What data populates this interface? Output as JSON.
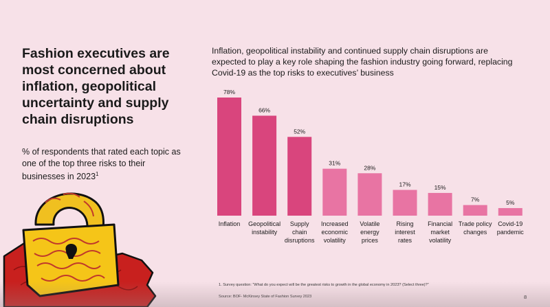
{
  "headline": "Fashion executives are most concerned about inflation, geopolitical uncertainty and supply chain disruptions",
  "subtitle": {
    "text": "% of respondents that rated each topic as one of the top three risks to their businesses in 2023",
    "footnote_marker": "1"
  },
  "chart_title": "Inflation, geopolitical instability and continued supply chain disruptions are expected to play a key role shaping the fashion industry going forward, replacing Covid-19 as the top risks to executives’ business",
  "footnote": "1.  Survey question: “What do you expect will be the greatest risks to growth in the global economy in 2023? (Select three)?”",
  "source": "Source: BOF- McKinsey State of Fashion Survey 2023",
  "page_number": "8",
  "colors": {
    "background": "#f7e1e8",
    "bar_dark": "#d9457d",
    "bar_light": "#e874a3"
  },
  "chart_data": {
    "type": "bar",
    "title": "Inflation, geopolitical instability and continued supply chain disruptions are expected to play a key role shaping the fashion industry going forward, replacing Covid-19 as the top risks to executives’ business",
    "categories": [
      "Inflation",
      "Geopolitical instability",
      "Supply chain disruptions",
      "Increased economic volatility",
      "Volatile energy prices",
      "Rising interest rates",
      "Financial market volatility",
      "Trade policy changes",
      "Covid-19 pandemic"
    ],
    "category_lines": [
      [
        "Inflation"
      ],
      [
        "Geopolitical",
        "instability"
      ],
      [
        "Supply",
        "chain",
        "disruptions"
      ],
      [
        "Increased",
        "economic",
        "volatility"
      ],
      [
        "Volatile",
        "energy",
        "prices"
      ],
      [
        "Rising",
        "interest",
        "rates"
      ],
      [
        "Financial",
        "market",
        "volatility"
      ],
      [
        "Trade policy",
        "changes"
      ],
      [
        "Covid-19",
        "pandemic"
      ]
    ],
    "values": [
      78,
      66,
      52,
      31,
      28,
      17,
      15,
      7,
      5
    ],
    "value_labels": [
      "78%",
      "66%",
      "52%",
      "31%",
      "28%",
      "17%",
      "15%",
      "7%",
      "5%"
    ],
    "highlight_top_n": 3,
    "ylim": [
      0,
      78
    ],
    "xlabel": "",
    "ylabel": "",
    "grid": false
  }
}
